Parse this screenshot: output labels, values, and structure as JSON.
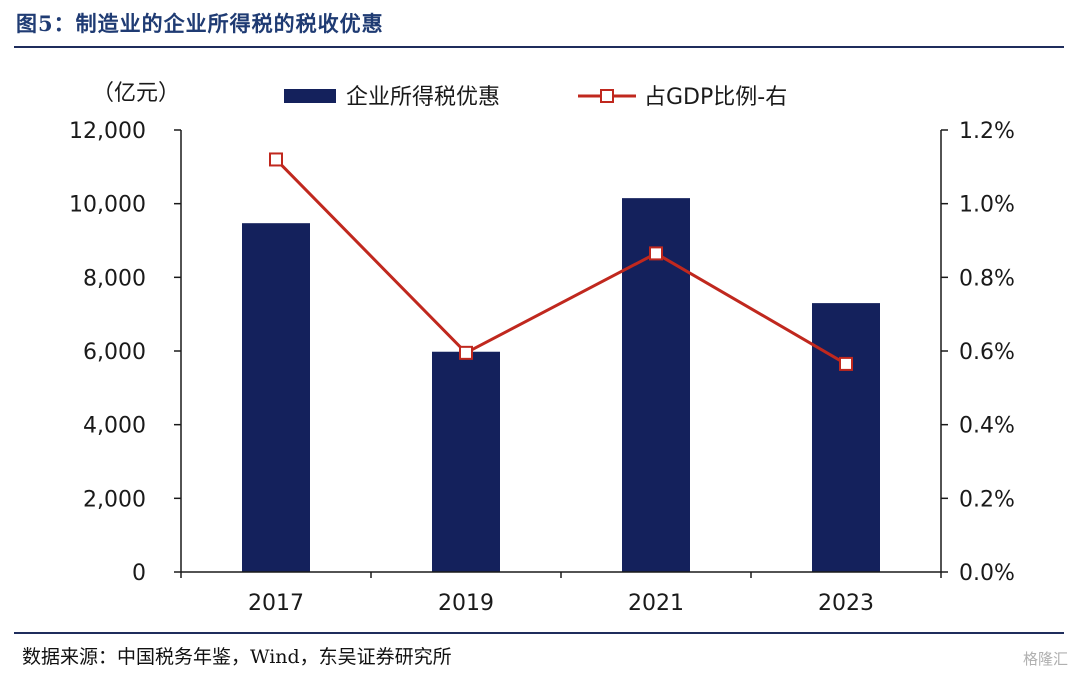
{
  "figure_title": "图5：制造业的企业所得税的税收优惠",
  "source_note": "数据来源：中国税务年鉴，Wind，东吴证券研究所",
  "watermark": "格隆汇",
  "colors": {
    "bar": "#14215c",
    "line": "#c0281e",
    "axis": "#1a1a1a",
    "title": "#1f3b73"
  },
  "chart_data": {
    "type": "bar",
    "categories": [
      "2017",
      "2019",
      "2021",
      "2023"
    ],
    "series": [
      {
        "name": "企业所得税优惠",
        "type": "bar",
        "axis": "left",
        "values": [
          9470,
          5980,
          10150,
          7300
        ]
      },
      {
        "name": "占GDP比例-右",
        "type": "line",
        "axis": "right",
        "values": [
          1.12,
          0.595,
          0.865,
          0.565
        ]
      }
    ],
    "ylabel": "（亿元）",
    "ylim": [
      0,
      12000
    ],
    "yticks": [
      "12,000",
      "10,000",
      "8,000",
      "6,000",
      "4,000",
      "2,000",
      "0"
    ],
    "y2lim": [
      0,
      1.2
    ],
    "y2ticks": [
      "1.2%",
      "1.0%",
      "0.8%",
      "0.6%",
      "0.4%",
      "0.2%",
      "0.0%"
    ],
    "legend_position": "top",
    "grid": false
  }
}
